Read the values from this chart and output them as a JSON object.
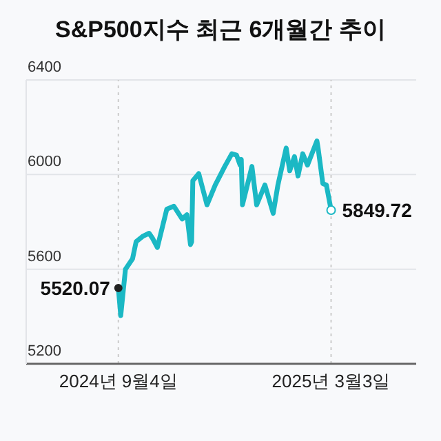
{
  "chart_data": {
    "type": "line",
    "title": "S&P500지수 최근 6개월간 추이",
    "x": [
      "2024-09-04",
      "2024-09-06",
      "2024-09-10",
      "2024-09-16",
      "2024-09-19",
      "2024-09-25",
      "2024-09-30",
      "2024-10-03",
      "2024-10-07",
      "2024-10-15",
      "2024-10-21",
      "2024-10-28",
      "2024-11-01",
      "2024-11-04",
      "2024-11-05",
      "2024-11-06",
      "2024-11-11",
      "2024-11-18",
      "2024-11-25",
      "2024-12-03",
      "2024-12-09",
      "2024-12-13",
      "2024-12-16",
      "2024-12-17",
      "2024-12-18",
      "2024-12-26",
      "2024-12-30",
      "2025-01-06",
      "2025-01-13",
      "2025-01-17",
      "2025-01-24",
      "2025-01-27",
      "2025-01-31",
      "2025-02-03",
      "2025-02-07",
      "2025-02-11",
      "2025-02-19",
      "2025-02-20",
      "2025-02-24",
      "2025-02-27",
      "2025-03-03"
    ],
    "series": [
      {
        "color": "#1bb8c4",
        "values": [
          5520.07,
          5404,
          5600,
          5644,
          5716,
          5740,
          5752,
          5730,
          5692,
          5854,
          5866,
          5812,
          5830,
          5704,
          5716,
          5974,
          6004,
          5872,
          5956,
          6034,
          6088,
          6082,
          6040,
          6064,
          5872,
          6034,
          5872,
          5956,
          5836,
          5956,
          6112,
          6016,
          6076,
          5994,
          6088,
          6040,
          6142,
          6112,
          5962,
          5956,
          5849.72
        ],
        "value_labels": [
          "5520.07",
          null,
          null,
          null,
          null,
          null,
          null,
          null,
          null,
          null,
          null,
          null,
          null,
          null,
          null,
          null,
          null,
          null,
          null,
          null,
          null,
          null,
          null,
          null,
          null,
          null,
          null,
          null,
          null,
          null,
          null,
          null,
          null,
          null,
          null,
          null,
          null,
          null,
          null,
          null,
          "5849.72"
        ]
      }
    ],
    "xlim": [
      "2024-06-18",
      "2025-05-14"
    ],
    "xticks": [
      {
        "value": "2024-09-04",
        "label": "2024년 9월4일"
      },
      {
        "value": "2025-03-03",
        "label": "2025년 3월3일"
      }
    ],
    "ylim": [
      5200,
      6400
    ],
    "yticks": [
      5200,
      5600,
      6000,
      6400
    ],
    "grid": "y",
    "marker": "none",
    "line_style": "solid",
    "ref_lines": [
      {
        "axis": "x",
        "value": "2024-09-04",
        "label": null,
        "color": "#cccccc",
        "line_style": "dotted"
      },
      {
        "axis": "x",
        "value": "2025-03-03",
        "label": null,
        "color": "#cccccc",
        "line_style": "dotted"
      }
    ]
  }
}
